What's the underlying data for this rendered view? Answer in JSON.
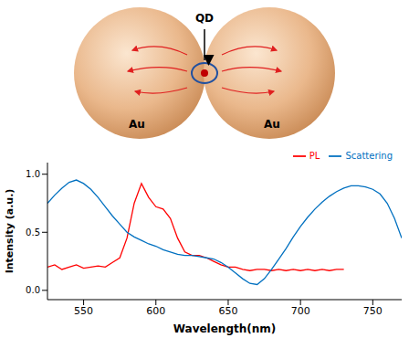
{
  "diagram": {
    "qd_label": "QD",
    "left_sphere_label": "Au",
    "right_sphere_label": "Au"
  },
  "chart_data": {
    "type": "line",
    "x_label": "Wavelength(nm)",
    "y_label": "Intensity (a.u.)",
    "x": [
      525,
      530,
      535,
      540,
      545,
      550,
      555,
      560,
      565,
      570,
      575,
      580,
      585,
      590,
      595,
      600,
      605,
      610,
      615,
      620,
      625,
      630,
      635,
      640,
      645,
      650,
      655,
      660,
      665,
      670,
      675,
      680,
      685,
      690,
      695,
      700,
      705,
      710,
      715,
      720,
      725,
      730,
      735,
      740,
      745,
      750,
      755,
      760,
      765,
      770
    ],
    "series": [
      {
        "name": "PL",
        "color": "#ff0000",
        "values": [
          0.2,
          0.22,
          0.18,
          0.2,
          0.22,
          0.19,
          0.2,
          0.21,
          0.2,
          0.24,
          0.28,
          0.45,
          0.75,
          0.92,
          0.8,
          0.72,
          0.7,
          0.62,
          0.45,
          0.33,
          0.3,
          0.3,
          0.28,
          0.25,
          0.22,
          0.2,
          0.2,
          0.18,
          0.17,
          0.18,
          0.18,
          0.17,
          0.18,
          0.17,
          0.18,
          0.17,
          0.18,
          0.17,
          0.18,
          0.17,
          0.18,
          0.18,
          null,
          null,
          null,
          null,
          null,
          null,
          null,
          null
        ]
      },
      {
        "name": "Scattering",
        "color": "#0070c0",
        "values": [
          0.75,
          0.82,
          0.88,
          0.93,
          0.95,
          0.92,
          0.87,
          0.8,
          0.72,
          0.64,
          0.57,
          0.5,
          0.46,
          0.43,
          0.4,
          0.38,
          0.35,
          0.33,
          0.31,
          0.3,
          0.3,
          0.29,
          0.28,
          0.27,
          0.24,
          0.2,
          0.15,
          0.1,
          0.06,
          0.05,
          0.1,
          0.18,
          0.27,
          0.36,
          0.46,
          0.55,
          0.63,
          0.7,
          0.76,
          0.81,
          0.85,
          0.88,
          0.9,
          0.9,
          0.89,
          0.87,
          0.83,
          0.75,
          0.62,
          0.45
        ]
      }
    ],
    "xlim": [
      525,
      770
    ],
    "xticks": [
      550,
      600,
      650,
      700,
      750
    ],
    "ylim": [
      -0.08,
      1.1
    ],
    "yticks": [
      {
        "value": 0,
        "label": "0.0"
      },
      0.5,
      {
        "value": 1,
        "label": "1.0"
      }
    ],
    "grid": false,
    "legend": "upper right"
  }
}
